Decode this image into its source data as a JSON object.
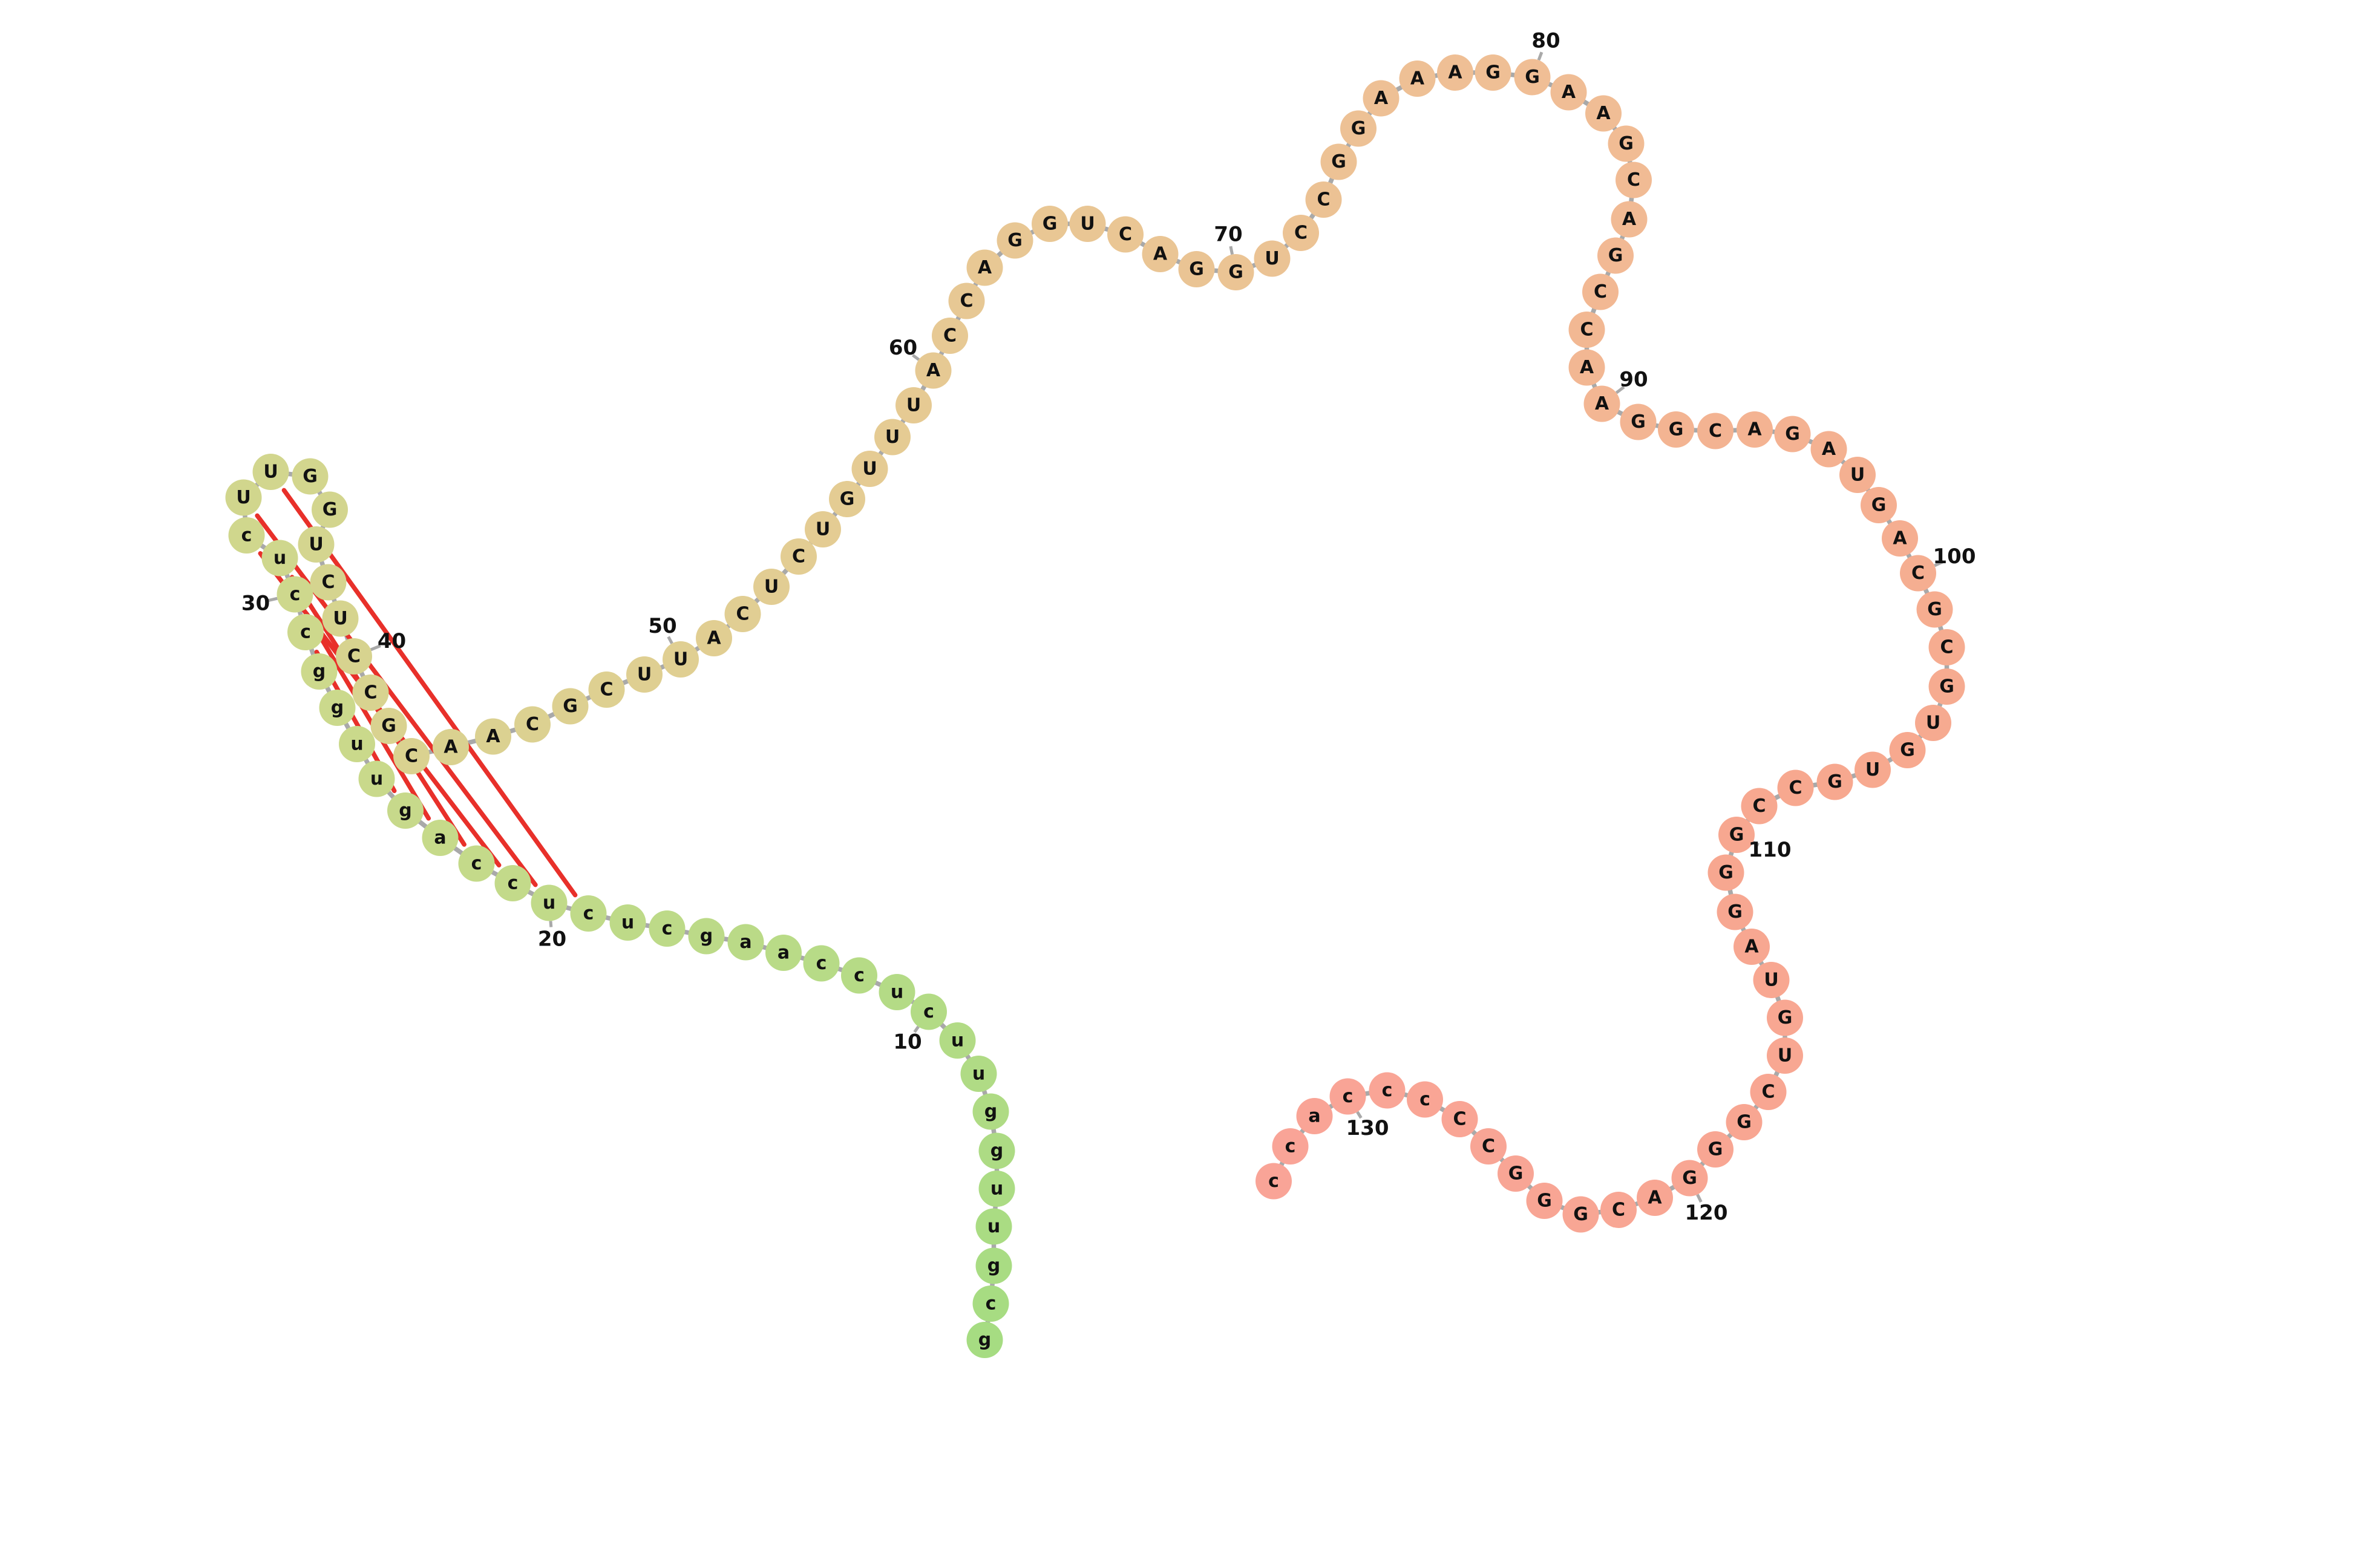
{
  "diagram": {
    "sequence": "gcguugguucuccaagcucuccaguuggccucUUGGUCUCCGCAACGCUUACUCUGUUUACCAGGUCAGGUCCGGAAAGGAAGCAGCCAAGGCAGAUGACGCGUGUGCCGGGAUGUCGGGACGGGCCcccacc",
    "structure": "..................((((((....))))))........................................................................................................",
    "numbers": [
      "10",
      "20",
      "30",
      "40",
      "50",
      "60",
      "70",
      "80",
      "90",
      "100",
      "110",
      "120",
      "130"
    ],
    "colors": {
      "backbone": "#a9a9a9",
      "pair": "#e8302a",
      "gradient": [
        "#a6dc82",
        "#ccd98c",
        "#e3cd93",
        "#f0be95",
        "#f7a88f",
        "#f9a497"
      ],
      "text": "#111111"
    }
  }
}
